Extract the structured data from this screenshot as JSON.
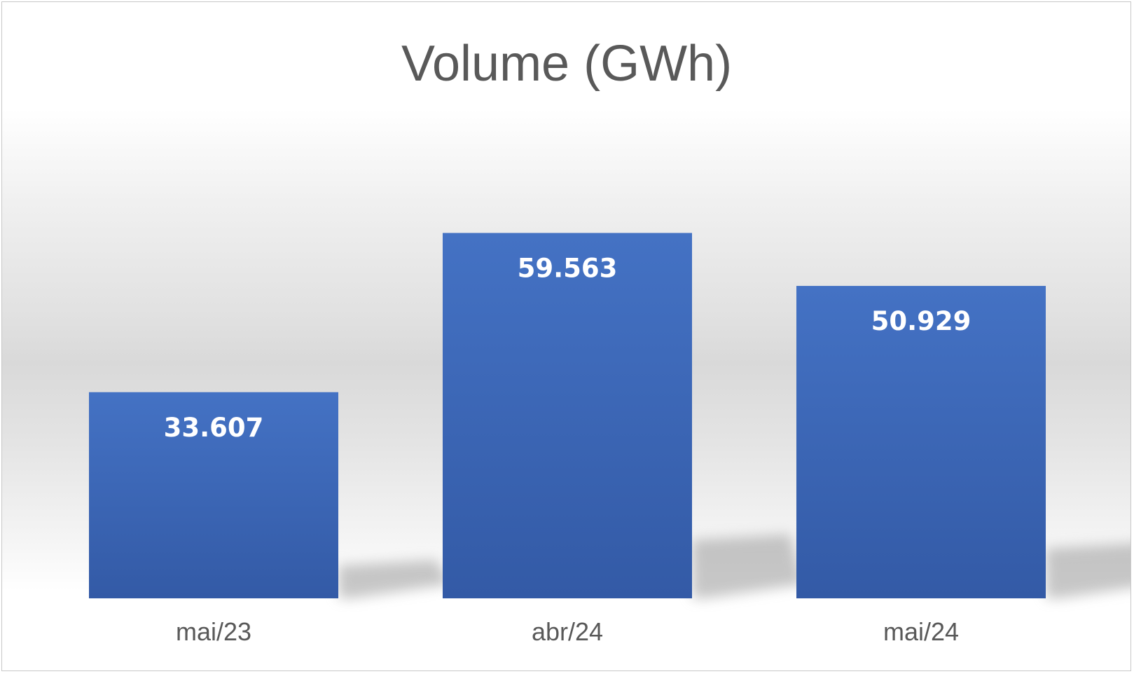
{
  "chart_data": {
    "type": "bar",
    "title": "Volume (GWh)",
    "xlabel": "",
    "ylabel": "",
    "categories": [
      "mai/23",
      "abr/24",
      "mai/24"
    ],
    "values": [
      33607,
      59563,
      50929
    ],
    "value_labels": [
      "33.607",
      "59.563",
      "50.929"
    ],
    "ylim": [
      0,
      90000
    ],
    "grid": false,
    "legend": "none",
    "bar_color": "#4472C4",
    "bar_color_bottom": "#335AA6",
    "label_color": "#FFFFFF",
    "text_color": "#595959"
  }
}
